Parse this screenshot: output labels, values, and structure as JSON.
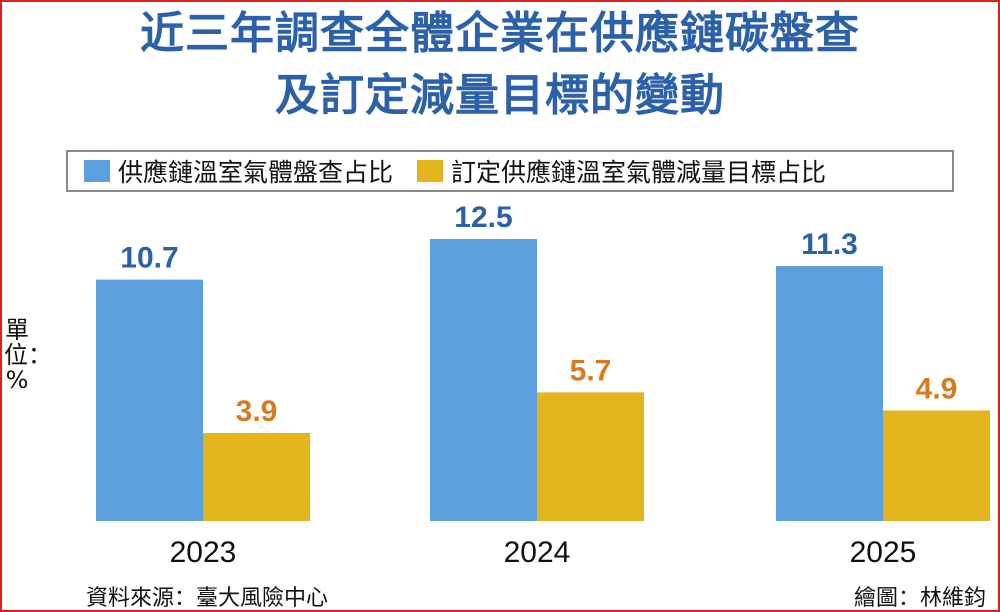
{
  "title_line1": "近三年調查全體企業在供應鏈碳盤查",
  "title_line2": "及訂定減量目標的變動",
  "unit_label": "單位：%",
  "source": "資料來源：臺大風險中心",
  "credit": "繪圖：林維鈞",
  "colors": {
    "blue": "#5b9fdc",
    "gold": "#e2b51f",
    "blue_text": "#2b61a8",
    "gold_text": "#d97a1f",
    "border": "#e0201c"
  },
  "chart_data": {
    "type": "bar",
    "title": "近三年調查全體企業在供應鏈碳盤查及訂定減量目標的變動",
    "categories": [
      "2023",
      "2024",
      "2025"
    ],
    "series": [
      {
        "name": "供應鏈溫室氣體盤查占比",
        "values": [
          10.7,
          12.5,
          11.3
        ],
        "color": "#5b9fdc"
      },
      {
        "name": "訂定供應鏈溫室氣體減量目標占比",
        "values": [
          3.9,
          5.7,
          4.9
        ],
        "color": "#e2b51f"
      }
    ],
    "ylabel": "單位：%",
    "ylim": [
      0,
      12.5
    ],
    "grid": false,
    "legend": "top"
  }
}
